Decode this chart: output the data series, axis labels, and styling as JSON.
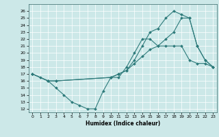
{
  "xlabel": "Humidex (Indice chaleur)",
  "bg_color": "#cce8e8",
  "grid_color": "#ffffff",
  "line_color": "#2d7a7a",
  "xlim": [
    -0.5,
    23.5
  ],
  "ylim": [
    11.5,
    27
  ],
  "xticks": [
    0,
    1,
    2,
    3,
    4,
    5,
    6,
    7,
    8,
    9,
    10,
    11,
    12,
    13,
    14,
    15,
    16,
    17,
    18,
    19,
    20,
    21,
    22,
    23
  ],
  "yticks": [
    12,
    13,
    14,
    15,
    16,
    17,
    18,
    19,
    20,
    21,
    22,
    23,
    24,
    25,
    26
  ],
  "series": [
    {
      "x": [
        0,
        1,
        2,
        3,
        4,
        5,
        6,
        7,
        8,
        9,
        10,
        11,
        12,
        13,
        14,
        15,
        16,
        17,
        18,
        19,
        20,
        21,
        22,
        23
      ],
      "y": [
        17,
        16.5,
        16,
        15,
        14,
        13,
        12.5,
        12,
        12,
        14.5,
        16.5,
        16.5,
        18,
        20,
        22,
        22,
        21,
        21,
        21,
        21,
        19,
        18.5,
        18.5,
        18
      ]
    },
    {
      "x": [
        0,
        2,
        3,
        10,
        11,
        12,
        13,
        14,
        15,
        16,
        17,
        18,
        19,
        20,
        21,
        22,
        23
      ],
      "y": [
        17,
        16,
        16,
        16.5,
        17,
        17.5,
        18.5,
        19.5,
        20.5,
        21,
        22,
        23,
        25,
        25,
        21,
        19,
        18
      ]
    },
    {
      "x": [
        0,
        2,
        3,
        10,
        11,
        12,
        13,
        14,
        15,
        16,
        17,
        18,
        19,
        20,
        21,
        22,
        23
      ],
      "y": [
        17,
        16,
        16,
        16.5,
        17,
        17.5,
        19,
        21,
        23,
        23.5,
        25,
        26,
        25.5,
        25,
        21,
        19,
        18
      ]
    }
  ]
}
